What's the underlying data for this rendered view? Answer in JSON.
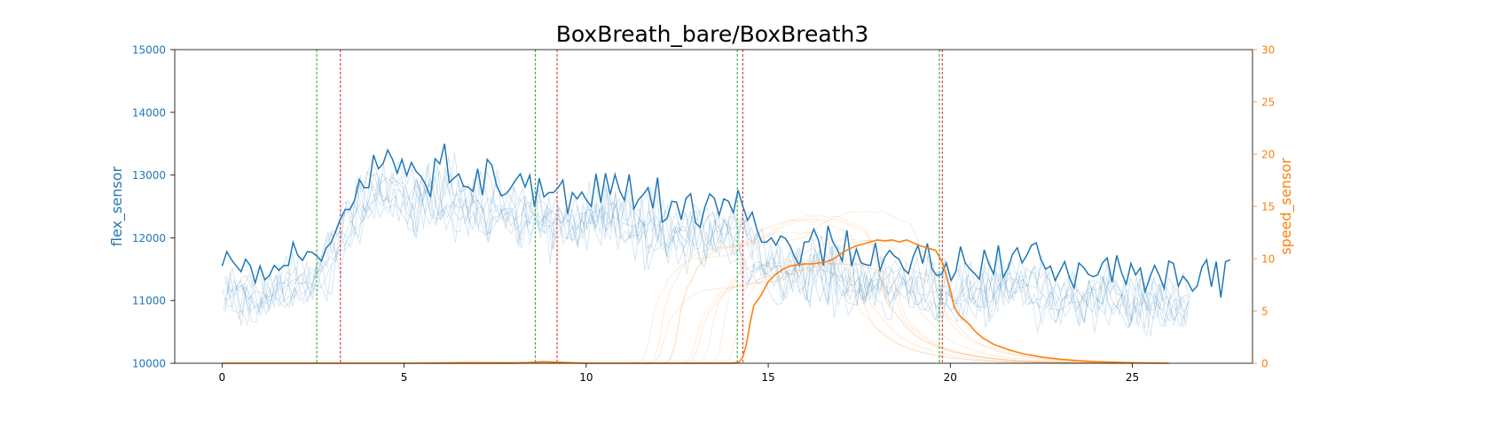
{
  "chart_data": {
    "type": "line",
    "title": "BoxBreath_bare/BoxBreath3",
    "xlabel": "",
    "xlim": [
      -1.3,
      28.3
    ],
    "xticks": [
      0,
      5,
      10,
      15,
      20,
      25
    ],
    "y_left": {
      "label": "flex_sensor",
      "lim": [
        10000,
        15000
      ],
      "ticks": [
        10000,
        11000,
        12000,
        13000,
        14000,
        15000
      ],
      "color": "#1f77b4"
    },
    "y_right": {
      "label": "speed_sensor",
      "lim": [
        0,
        30
      ],
      "ticks": [
        0,
        5,
        10,
        15,
        20,
        25,
        30
      ],
      "color": "#ff7f0e"
    },
    "vlines": [
      {
        "x": 2.6,
        "color": "#2ca02c"
      },
      {
        "x": 3.25,
        "color": "#d62728"
      },
      {
        "x": 8.6,
        "color": "#2ca02c"
      },
      {
        "x": 9.2,
        "color": "#d62728"
      },
      {
        "x": 14.15,
        "color": "#2ca02c"
      },
      {
        "x": 14.3,
        "color": "#d62728"
      },
      {
        "x": 19.7,
        "color": "#2ca02c"
      },
      {
        "x": 19.78,
        "color": "#d62728"
      }
    ],
    "flex_main": {
      "x_start": 0,
      "x_step": 0.13,
      "values": [
        11550,
        11780,
        11650,
        11550,
        11460,
        11660,
        11550,
        11280,
        11550,
        11330,
        11400,
        11560,
        11480,
        11560,
        11560,
        11930,
        11720,
        11640,
        11780,
        11770,
        11710,
        11630,
        11840,
        11920,
        12100,
        12300,
        12450,
        12450,
        12600,
        12930,
        12800,
        12800,
        13320,
        13100,
        13180,
        13400,
        13250,
        13030,
        13250,
        12990,
        13200,
        13060,
        12980,
        12850,
        12650,
        13260,
        13180,
        13500,
        12880,
        12950,
        13020,
        12820,
        12810,
        12740,
        13100,
        12680,
        13250,
        13160,
        12830,
        12670,
        12700,
        12800,
        12920,
        13020,
        12810,
        13000,
        12500,
        12950,
        12650,
        12720,
        12720,
        12800,
        12920,
        12380,
        12720,
        12620,
        12730,
        12600,
        12500,
        13020,
        12560,
        13030,
        12690,
        13010,
        12750,
        12600,
        13010,
        12460,
        12610,
        12690,
        12800,
        12470,
        12960,
        12250,
        12310,
        12580,
        12570,
        12290,
        12630,
        12700,
        12240,
        12170,
        12490,
        12700,
        12630,
        12360,
        12620,
        12580,
        12400,
        12760,
        12510,
        12280,
        12410,
        12130,
        11930,
        11930,
        12000,
        11880,
        12030,
        11990,
        11870,
        11690,
        11560,
        11930,
        11940,
        12140,
        11960,
        11560,
        12190,
        11940,
        11810,
        11630,
        12120,
        11550,
        11820,
        11600,
        11570,
        11560,
        11920,
        11480,
        11690,
        11800,
        11710,
        11660,
        11500,
        11430,
        11700,
        11880,
        11590,
        11910,
        11500,
        11400,
        11420,
        11600,
        11320,
        11460,
        11860,
        11600,
        11500,
        11430,
        11340,
        11810,
        11580,
        11420,
        11880,
        11370,
        11510,
        11740,
        11840,
        11600,
        11720,
        11880,
        11920,
        11650,
        11500,
        11550,
        11320,
        11470,
        11620,
        11370,
        11200,
        11600,
        11530,
        11420,
        11380,
        11410,
        11600,
        11680,
        11290,
        11720,
        11450,
        11260,
        11590,
        11410,
        11520,
        11140,
        11370,
        11560,
        11400,
        11190,
        11630,
        11590,
        11230,
        11390,
        11300,
        11150,
        11230,
        11530,
        11650,
        11220,
        11620,
        11050,
        11620,
        11650
      ]
    },
    "speed_main": {
      "points": [
        [
          0,
          0
        ],
        [
          5,
          0
        ],
        [
          8,
          0
        ],
        [
          8.4,
          0.05
        ],
        [
          8.8,
          0.15
        ],
        [
          9.2,
          0.1
        ],
        [
          9.6,
          0.05
        ],
        [
          10,
          0
        ],
        [
          12,
          0
        ],
        [
          14,
          0
        ],
        [
          14.2,
          0.1
        ],
        [
          14.3,
          0.6
        ],
        [
          14.4,
          1.8
        ],
        [
          14.5,
          3.8
        ],
        [
          14.6,
          5.5
        ],
        [
          14.8,
          6.5
        ],
        [
          15,
          7.8
        ],
        [
          15.2,
          8.5
        ],
        [
          15.4,
          9.0
        ],
        [
          15.6,
          9.3
        ],
        [
          15.8,
          9.4
        ],
        [
          16,
          9.5
        ],
        [
          16.2,
          9.5
        ],
        [
          16.4,
          9.6
        ],
        [
          16.6,
          9.7
        ],
        [
          16.8,
          10.0
        ],
        [
          17,
          10.5
        ],
        [
          17.2,
          10.9
        ],
        [
          17.4,
          11.2
        ],
        [
          17.6,
          11.4
        ],
        [
          17.8,
          11.6
        ],
        [
          18,
          11.8
        ],
        [
          18.2,
          11.7
        ],
        [
          18.4,
          11.8
        ],
        [
          18.6,
          11.6
        ],
        [
          18.8,
          11.8
        ],
        [
          19,
          11.5
        ],
        [
          19.2,
          11.2
        ],
        [
          19.4,
          11.0
        ],
        [
          19.6,
          10.8
        ],
        [
          19.8,
          9.5
        ],
        [
          19.9,
          8.2
        ],
        [
          20,
          7.0
        ],
        [
          20.1,
          5.5
        ],
        [
          20.2,
          4.8
        ],
        [
          20.3,
          4.4
        ],
        [
          20.5,
          3.8
        ],
        [
          20.7,
          3.0
        ],
        [
          20.9,
          2.4
        ],
        [
          21.2,
          1.8
        ],
        [
          21.6,
          1.3
        ],
        [
          22,
          0.9
        ],
        [
          22.5,
          0.6
        ],
        [
          23,
          0.4
        ],
        [
          23.5,
          0.25
        ],
        [
          24,
          0.15
        ],
        [
          25,
          0.05
        ],
        [
          26,
          0
        ]
      ]
    },
    "flex_faint_series_count": 9,
    "speed_faint_series_count": 10
  }
}
